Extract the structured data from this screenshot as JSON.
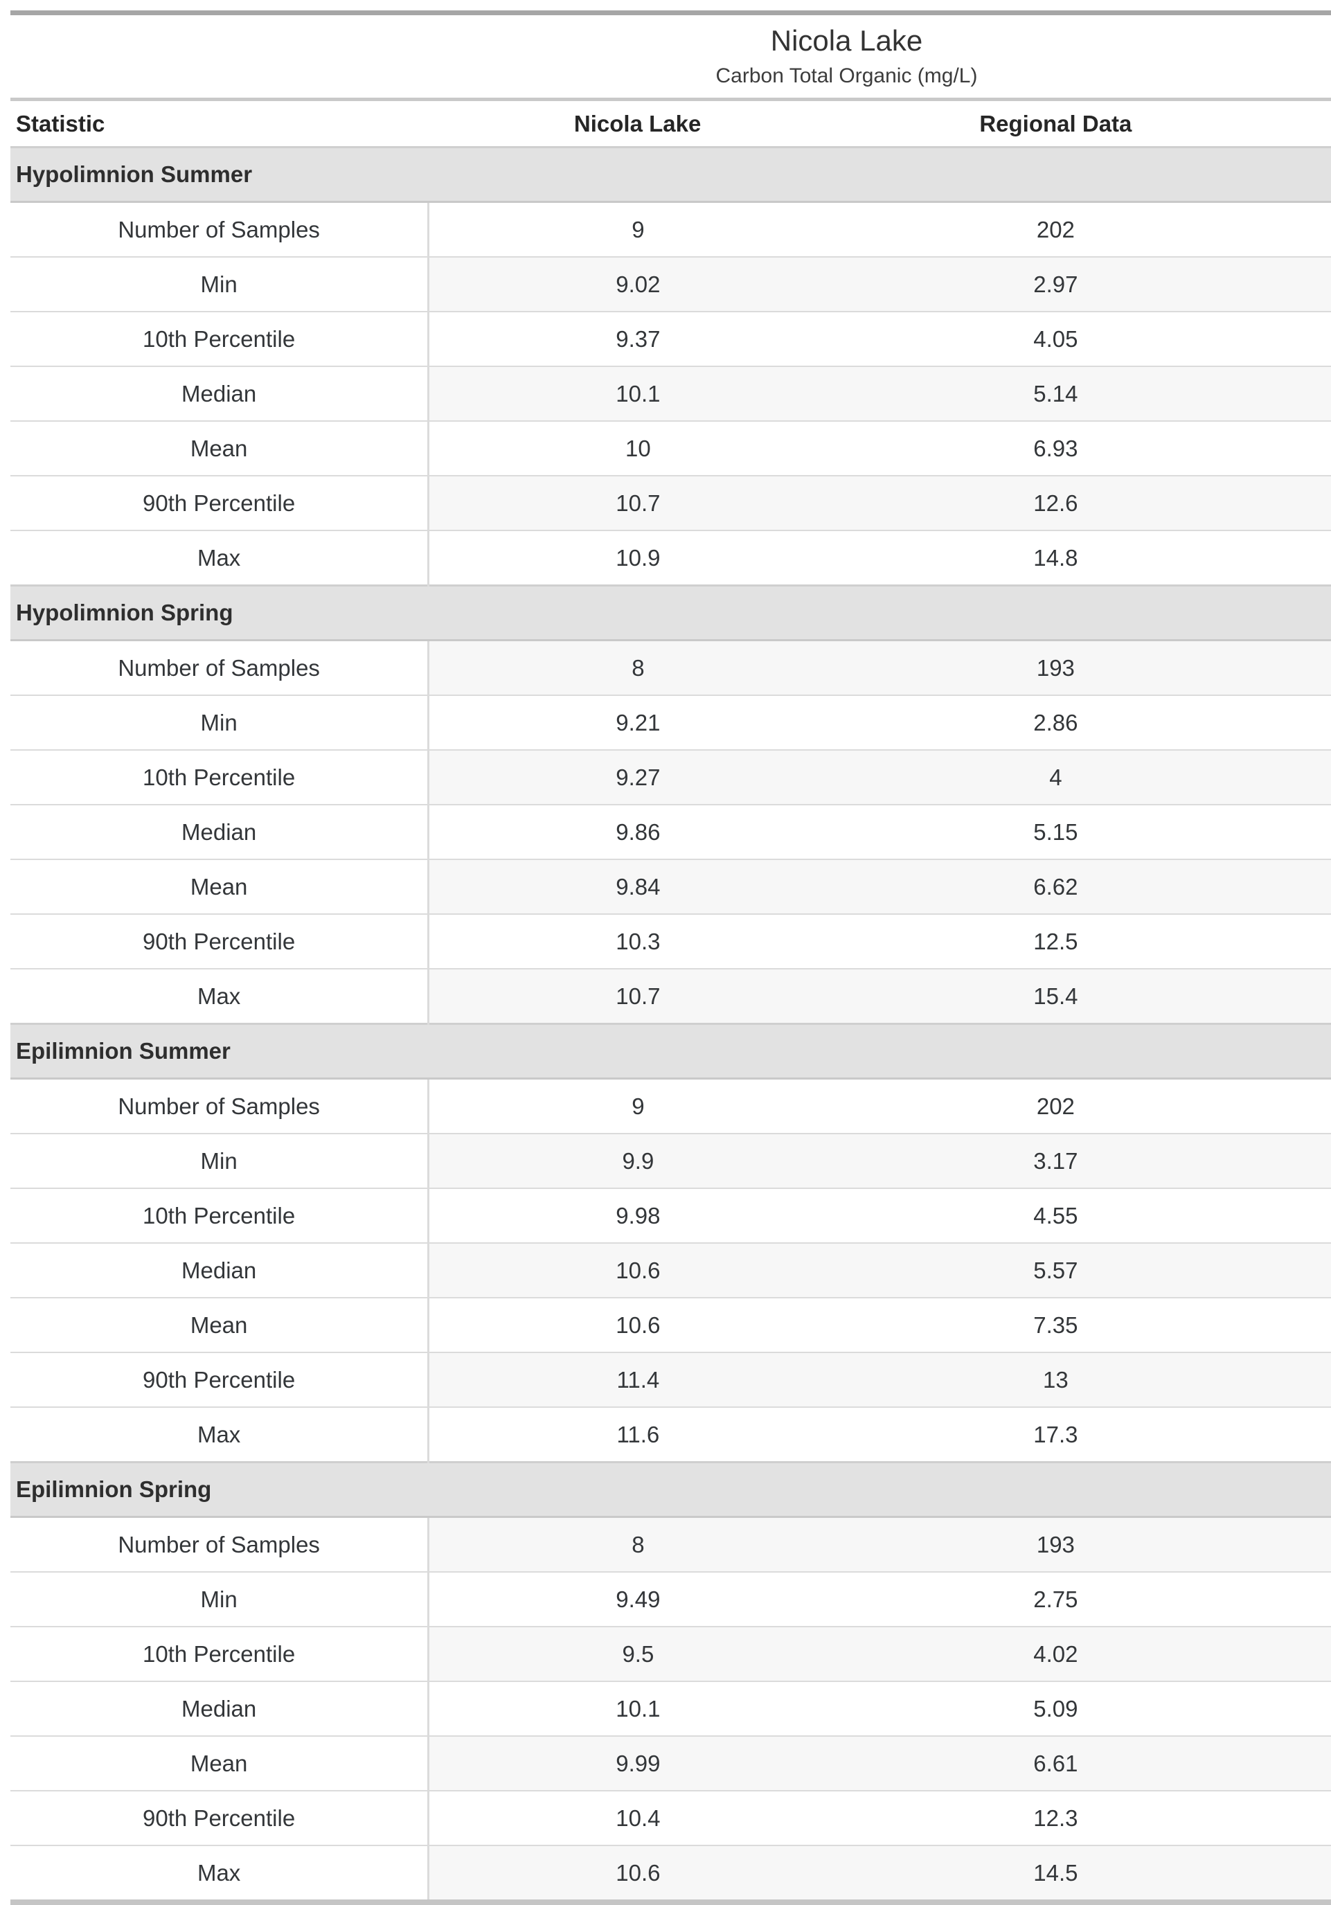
{
  "title": "Nicola Lake",
  "subtitle": "Carbon Total Organic (mg/L)",
  "columns": [
    "Statistic",
    "Nicola Lake",
    "Regional Data"
  ],
  "chart_data": {
    "type": "table",
    "title": "Nicola Lake",
    "subtitle": "Carbon Total Organic (mg/L)",
    "columns": [
      "Statistic",
      "Nicola Lake",
      "Regional Data"
    ],
    "sections": [
      {
        "label": "Hypolimnion Summer",
        "rows": [
          [
            "Number of Samples",
            "9",
            "202"
          ],
          [
            "Min",
            "9.02",
            "2.97"
          ],
          [
            "10th Percentile",
            "9.37",
            "4.05"
          ],
          [
            "Median",
            "10.1",
            "5.14"
          ],
          [
            "Mean",
            "10",
            "6.93"
          ],
          [
            "90th Percentile",
            "10.7",
            "12.6"
          ],
          [
            "Max",
            "10.9",
            "14.8"
          ]
        ]
      },
      {
        "label": "Hypolimnion Spring",
        "rows": [
          [
            "Number of Samples",
            "8",
            "193"
          ],
          [
            "Min",
            "9.21",
            "2.86"
          ],
          [
            "10th Percentile",
            "9.27",
            "4"
          ],
          [
            "Median",
            "9.86",
            "5.15"
          ],
          [
            "Mean",
            "9.84",
            "6.62"
          ],
          [
            "90th Percentile",
            "10.3",
            "12.5"
          ],
          [
            "Max",
            "10.7",
            "15.4"
          ]
        ]
      },
      {
        "label": "Epilimnion Summer",
        "rows": [
          [
            "Number of Samples",
            "9",
            "202"
          ],
          [
            "Min",
            "9.9",
            "3.17"
          ],
          [
            "10th Percentile",
            "9.98",
            "4.55"
          ],
          [
            "Median",
            "10.6",
            "5.57"
          ],
          [
            "Mean",
            "10.6",
            "7.35"
          ],
          [
            "90th Percentile",
            "11.4",
            "13"
          ],
          [
            "Max",
            "11.6",
            "17.3"
          ]
        ]
      },
      {
        "label": "Epilimnion Spring",
        "rows": [
          [
            "Number of Samples",
            "8",
            "193"
          ],
          [
            "Min",
            "9.49",
            "2.75"
          ],
          [
            "10th Percentile",
            "9.5",
            "4.02"
          ],
          [
            "Median",
            "10.1",
            "5.09"
          ],
          [
            "Mean",
            "9.99",
            "6.61"
          ],
          [
            "90th Percentile",
            "10.4",
            "12.3"
          ],
          [
            "Max",
            "10.6",
            "14.5"
          ]
        ]
      }
    ]
  },
  "colors": {
    "section_band_bg": "#e2e2e2",
    "stripe_bg": "#f7f7f7",
    "rule_dark": "#a6a6a6",
    "rule_light": "#c9c9c9",
    "cell_border": "#dbdbdb",
    "text": "#333333"
  }
}
